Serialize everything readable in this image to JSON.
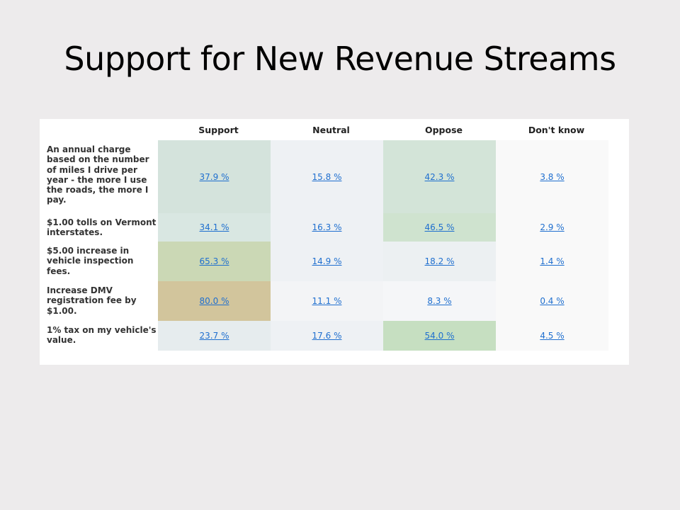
{
  "slide": {
    "title": "Support for New Revenue Streams"
  },
  "table": {
    "headers": [
      "Support",
      "Neutral",
      "Oppose",
      "Don't know"
    ],
    "rows": [
      {
        "label": "An annual charge based on the number of miles I drive per year - the more I use the roads, the more I pay.",
        "values": [
          "37.9 %",
          "15.8 %",
          "42.3 %",
          "3.8 %"
        ],
        "colors": [
          "#d4e3dc",
          "#eef1f4",
          "#d3e4d8",
          "#f9f9f9"
        ]
      },
      {
        "label": "$1.00 tolls on Vermont interstates.",
        "values": [
          "34.1 %",
          "16.3 %",
          "46.5 %",
          "2.9 %"
        ],
        "colors": [
          "#d9e7e2",
          "#eef1f4",
          "#cfe3cf",
          "#f9f9f9"
        ]
      },
      {
        "label": "$5.00 increase in vehicle inspection fees.",
        "values": [
          "65.3 %",
          "14.9 %",
          "18.2 %",
          "1.4 %"
        ],
        "colors": [
          "#cbd8b5",
          "#eef1f4",
          "#ecf0f2",
          "#f9f9f9"
        ]
      },
      {
        "label": "Increase DMV registration fee by $1.00.",
        "values": [
          "80.0 %",
          "11.1 %",
          "8.3 %",
          "0.4 %"
        ],
        "colors": [
          "#d2c59c",
          "#f3f4f6",
          "#f5f6f8",
          "#f9f9f9"
        ]
      },
      {
        "label": "1% tax on my vehicle's value.",
        "values": [
          "23.7 %",
          "17.6 %",
          "54.0 %",
          "4.5 %"
        ],
        "colors": [
          "#e6ecee",
          "#eef1f4",
          "#c6dfc1",
          "#f9f9f9"
        ]
      }
    ]
  }
}
